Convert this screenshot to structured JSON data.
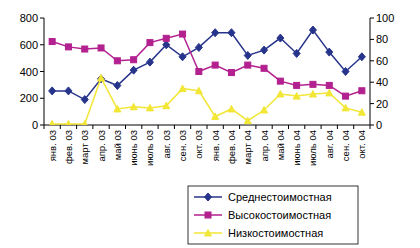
{
  "chart_data": {
    "type": "line",
    "categories": [
      "янв. 03",
      "фев. 03",
      "март 03",
      "апр. 03",
      "май 03",
      "июнь 03",
      "июль 03",
      "авг. 03",
      "сен. 03",
      "окт. 03",
      "янв. 04",
      "фев. 04",
      "март 04",
      "апр. 04",
      "май 04",
      "июнь 04",
      "июль 04",
      "авг. 04",
      "сен. 04",
      "окт. 04"
    ],
    "series": [
      {
        "name": "Среднестоимостная",
        "color": "#27348b",
        "marker": "diamond",
        "values": [
          255,
          255,
          190,
          345,
          295,
          410,
          470,
          600,
          510,
          580,
          690,
          690,
          520,
          560,
          650,
          535,
          710,
          545,
          400,
          510
        ]
      },
      {
        "name": "Высокостоимостная",
        "color": "#b3208f",
        "marker": "square",
        "axis": "y2",
        "values": [
          78,
          73,
          71,
          72,
          60,
          61,
          77,
          81,
          85,
          50,
          56,
          49,
          56,
          53,
          41,
          37,
          38,
          37,
          27,
          32
        ]
      },
      {
        "name": "Низкостоимостная",
        "color": "#f2e636",
        "marker": "triangle",
        "axis": "y2",
        "values": [
          1,
          1,
          1,
          44,
          15,
          17,
          16,
          18,
          34,
          32,
          8,
          15,
          4,
          14,
          29,
          27,
          29,
          30,
          16,
          12
        ]
      }
    ],
    "ylim": [
      0,
      800
    ],
    "yticks": [
      0,
      200,
      400,
      600,
      800
    ],
    "y2lim": [
      0,
      100
    ],
    "y2ticks": [
      0,
      20,
      40,
      60,
      80,
      100
    ],
    "legend": "bottom"
  }
}
